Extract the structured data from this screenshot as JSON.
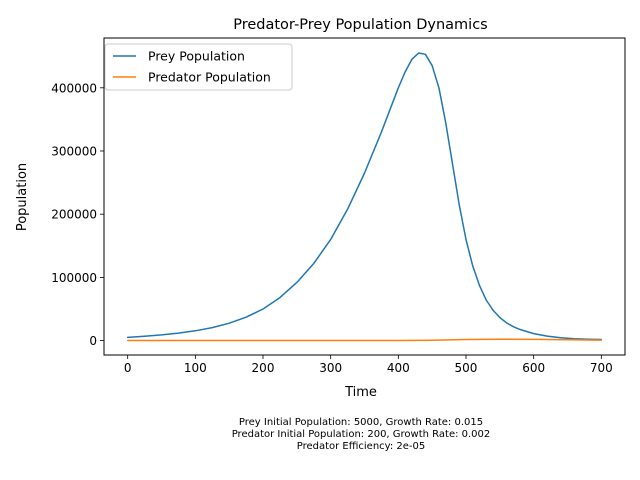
{
  "chart_data": {
    "type": "line",
    "title": "Predator-Prey Population Dynamics",
    "xlabel": "Time",
    "ylabel": "Population",
    "xlim": [
      -35,
      735
    ],
    "ylim": [
      -22800,
      478800
    ],
    "xticks": [
      0,
      100,
      200,
      300,
      400,
      500,
      600,
      700
    ],
    "yticks": [
      0,
      100000,
      200000,
      300000,
      400000
    ],
    "grid": false,
    "legend_position": "top-left",
    "series": [
      {
        "name": "Prey Population",
        "color": "#1f77b4",
        "x": [
          0,
          25,
          50,
          75,
          100,
          125,
          150,
          175,
          200,
          225,
          250,
          275,
          300,
          325,
          350,
          375,
          400,
          410,
          420,
          430,
          440,
          450,
          460,
          470,
          480,
          490,
          500,
          510,
          520,
          530,
          540,
          550,
          560,
          570,
          580,
          600,
          620,
          640,
          660,
          680,
          700
        ],
        "y": [
          5000,
          6800,
          9000,
          11800,
          15500,
          20500,
          27500,
          37000,
          50000,
          68000,
          92000,
          122000,
          160000,
          208000,
          265000,
          330000,
          400000,
          425000,
          445000,
          455000,
          453000,
          435000,
          400000,
          345000,
          280000,
          215000,
          160000,
          118000,
          87000,
          64000,
          48000,
          36500,
          28000,
          22000,
          17500,
          11000,
          7000,
          4500,
          3000,
          2200,
          1800
        ]
      },
      {
        "name": "Predator Population",
        "color": "#ff7f0e",
        "x": [
          0,
          50,
          100,
          150,
          200,
          250,
          300,
          350,
          400,
          450,
          500,
          550,
          600,
          650,
          700
        ],
        "y": [
          200,
          150,
          110,
          80,
          60,
          50,
          45,
          60,
          150,
          600,
          1700,
          2200,
          2000,
          1400,
          800
        ]
      }
    ],
    "annotation_lines": [
      "Prey Initial Population: 5000, Growth Rate: 0.015",
      "Predator Initial Population: 200, Growth Rate: 0.002",
      "Predator Efficiency: 2e-05"
    ]
  }
}
